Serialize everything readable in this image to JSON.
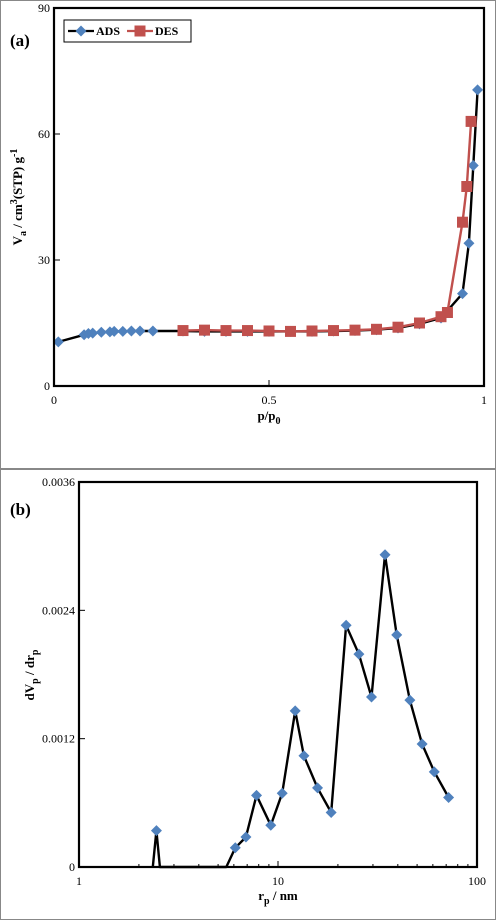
{
  "chart_data": [
    {
      "panel_label": "(a)",
      "type": "line",
      "xlabel_main": "p/p",
      "xlabel_sub": "0",
      "ylabel_parts": [
        {
          "t": "V",
          "s": "n"
        },
        {
          "t": "a",
          "s": "sub"
        },
        {
          "t": " / cm",
          "s": "n"
        },
        {
          "t": "3",
          "s": "sup"
        },
        {
          "t": "(STP) g",
          "s": "n"
        },
        {
          "t": "-1",
          "s": "sup"
        }
      ],
      "xlim": [
        0,
        1
      ],
      "ylim": [
        0,
        90
      ],
      "xticks": [
        0,
        0.5,
        1
      ],
      "xtick_labels": [
        "0",
        "0.5",
        "1"
      ],
      "yticks": [
        0,
        30,
        60,
        90
      ],
      "ytick_labels": [
        "0",
        "30",
        "60",
        "90"
      ],
      "legend_position": "top-left",
      "series": [
        {
          "name": "ADS",
          "marker": "diamond",
          "color": "#4f81bd",
          "line_color": "#000000",
          "x": [
            0.01,
            0.07,
            0.08,
            0.09,
            0.11,
            0.13,
            0.14,
            0.16,
            0.18,
            0.2,
            0.23,
            0.3,
            0.35,
            0.4,
            0.45,
            0.5,
            0.55,
            0.6,
            0.65,
            0.7,
            0.75,
            0.8,
            0.85,
            0.9,
            0.95,
            0.965,
            0.975,
            0.985
          ],
          "y": [
            10.5,
            12.2,
            12.5,
            12.6,
            12.8,
            12.9,
            13.0,
            13.0,
            13.1,
            13.1,
            13.1,
            13.1,
            13.0,
            13.0,
            13.0,
            13.0,
            13.0,
            13.0,
            13.1,
            13.2,
            13.4,
            13.8,
            14.8,
            16.2,
            22.0,
            34.0,
            52.5,
            70.5
          ],
          "show_points": [
            0,
            1,
            2,
            3,
            4,
            5,
            6,
            7,
            8,
            9,
            10,
            11,
            12,
            13,
            14,
            15,
            16,
            17,
            18,
            19,
            20,
            21,
            22,
            23,
            24,
            25,
            26,
            27
          ]
        },
        {
          "name": "DES",
          "marker": "square",
          "color": "#c0504d",
          "line_color": "#c0504d",
          "x": [
            0.3,
            0.35,
            0.4,
            0.45,
            0.5,
            0.55,
            0.6,
            0.65,
            0.7,
            0.75,
            0.8,
            0.85,
            0.9,
            0.915,
            0.95,
            0.96,
            0.97
          ],
          "y": [
            13.2,
            13.3,
            13.2,
            13.2,
            13.1,
            13.0,
            13.1,
            13.2,
            13.3,
            13.5,
            14.0,
            15.0,
            16.5,
            17.5,
            39.0,
            47.5,
            63.0
          ],
          "show_points": [
            0,
            1,
            2,
            3,
            4,
            5,
            6,
            7,
            8,
            9,
            10,
            11,
            12,
            13,
            14,
            15,
            16
          ]
        }
      ]
    },
    {
      "panel_label": "(b)",
      "type": "line",
      "xscale": "log",
      "xlabel_main": "r",
      "xlabel_sub": "p",
      "xlabel_after": " / nm",
      "ylabel_parts": [
        {
          "t": "dV",
          "s": "n"
        },
        {
          "t": "p",
          "s": "sub"
        },
        {
          "t": " / dr",
          "s": "n"
        },
        {
          "t": "p",
          "s": "sub"
        }
      ],
      "xlim": [
        1,
        100
      ],
      "ylim": [
        0,
        0.0036
      ],
      "xticks": [
        1,
        10,
        100
      ],
      "xtick_labels": [
        "1",
        "10",
        "100"
      ],
      "yticks": [
        0,
        0.0012,
        0.0024,
        0.0036
      ],
      "ytick_labels": [
        "0",
        "0.0012",
        "0.0024",
        "0.0036"
      ],
      "series": [
        {
          "name": "",
          "marker": "diamond",
          "color": "#4f81bd",
          "line_color": "#000000",
          "x": [
            2.35,
            2.45,
            2.55,
            5.5,
            6.1,
            6.9,
            7.8,
            9.2,
            10.5,
            12.2,
            13.5,
            15.8,
            18.5,
            22.0,
            25.5,
            29.5,
            34.5,
            39.5,
            46.0,
            53.0,
            61.0,
            72.0
          ],
          "y": [
            0,
            0.00034,
            0,
            0,
            0.00018,
            0.00028,
            0.00067,
            0.00039,
            0.00069,
            0.00146,
            0.00104,
            0.00074,
            0.00051,
            0.00226,
            0.00199,
            0.00159,
            0.00292,
            0.00217,
            0.00156,
            0.00115,
            0.00089,
            0.00065
          ],
          "show_points": [
            1,
            4,
            5,
            6,
            7,
            8,
            9,
            10,
            11,
            12,
            13,
            14,
            15,
            16,
            17,
            18,
            19,
            20,
            21
          ]
        }
      ]
    }
  ]
}
